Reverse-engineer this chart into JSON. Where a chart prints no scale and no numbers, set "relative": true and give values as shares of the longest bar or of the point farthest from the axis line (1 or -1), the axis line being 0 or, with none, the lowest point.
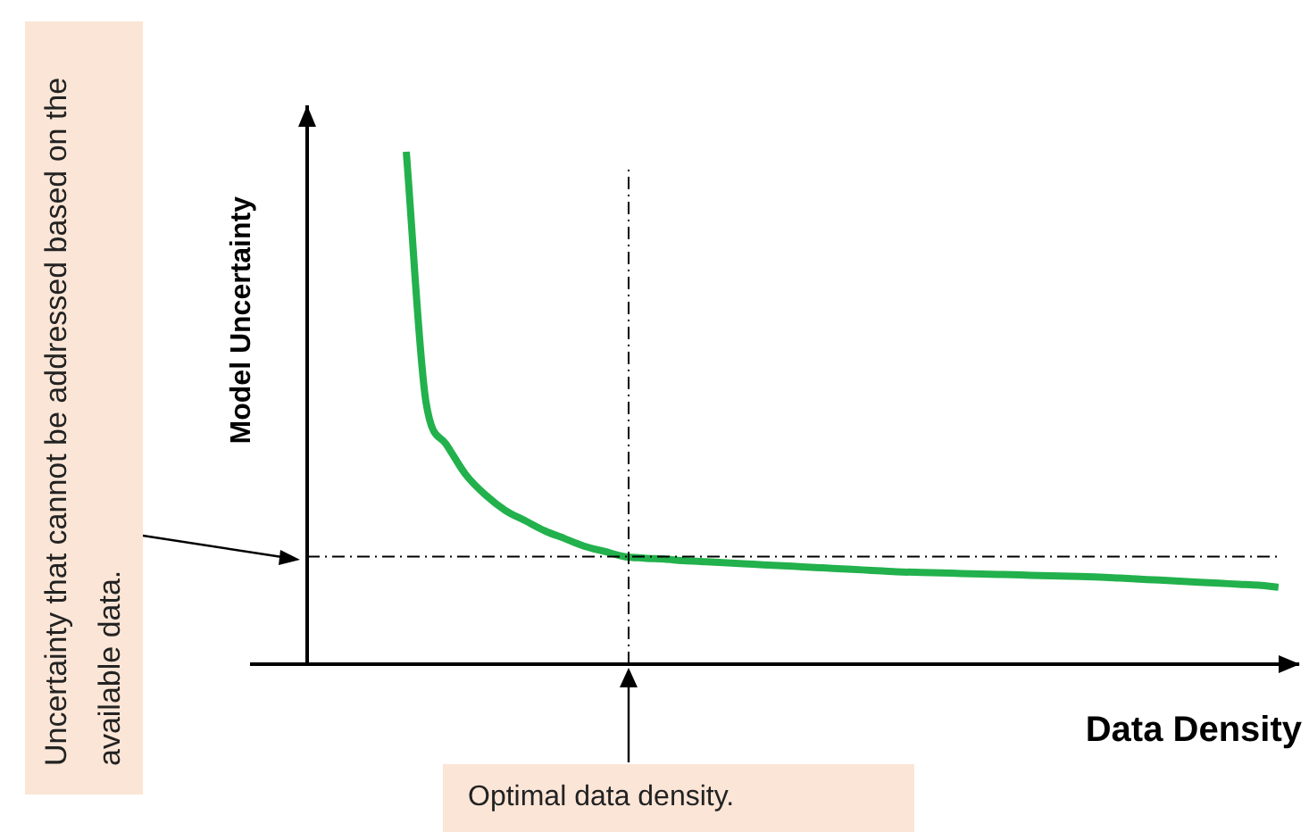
{
  "chart_data": {
    "type": "line",
    "relative": true,
    "xlabel": "Data Density",
    "ylabel": "Model Uncertainty",
    "categories": [
      null,
      null,
      null,
      null,
      null,
      null,
      null,
      null,
      null,
      null,
      null,
      null,
      null,
      null,
      null,
      null,
      null,
      null,
      null,
      null,
      null,
      null,
      null,
      null,
      null,
      null,
      null,
      null,
      null,
      null,
      null,
      null,
      null,
      null,
      null,
      null,
      null,
      null,
      null,
      null,
      null,
      null,
      null,
      null,
      null,
      null,
      null,
      null,
      null,
      null,
      null
    ],
    "series": [
      {
        "color": "#22b14c",
        "values": [
          null,
          null,
          null,
          null,
          null,
          1,
          0.51,
          0.43,
          0.37,
          0.33,
          0.3,
          0.28,
          0.26,
          0.245,
          0.23,
          0.22,
          0.21,
          0.207,
          0.205,
          0.202,
          0.2,
          0.198,
          0.196,
          0.194,
          0.192,
          0.19,
          0.188,
          0.186,
          0.184,
          0.182,
          0.18,
          0.179,
          0.178,
          0.177,
          0.176,
          0.175,
          0.174,
          0.173,
          0.172,
          0.171,
          0.17,
          0.168,
          0.166,
          0.164,
          0.162,
          0.16,
          0.158,
          0.156,
          0.154,
          0.15,
          null
        ]
      }
    ],
    "ref_lines": [
      {
        "axis": "y",
        "value": 0.21,
        "label": "Uncertainty that cannot be addressed based on the available data.",
        "color": "#000000",
        "line_style": "dashed"
      }
    ],
    "annotations": [
      "Optimal data density."
    ],
    "grid": false,
    "legend": false,
    "marker": "none",
    "line_style": "solid"
  }
}
